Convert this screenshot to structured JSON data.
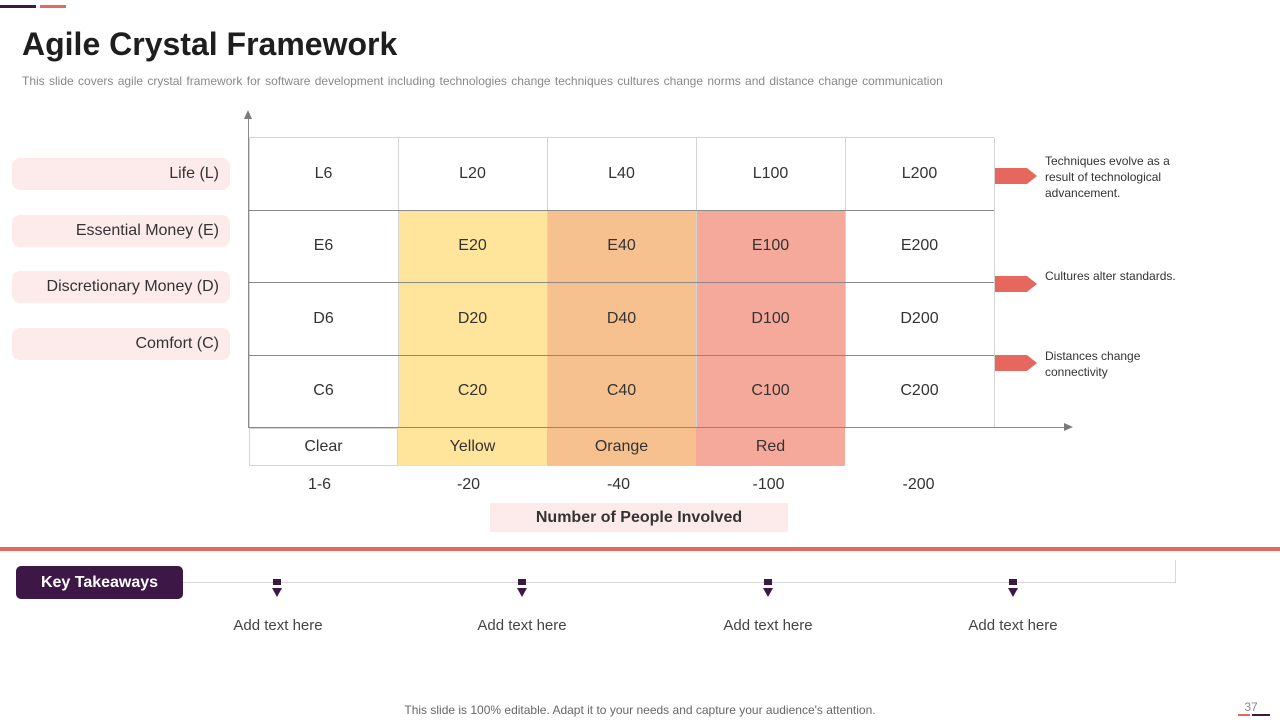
{
  "title": "Agile Crystal Framework",
  "subtitle": "This slide covers agile crystal framework for software development  including technologies change techniques cultures change norms and distance change communication",
  "row_labels": [
    "Life (L)",
    "Essential Money (E)",
    "Discretionary Money (D)",
    "Comfort (C)"
  ],
  "grid": {
    "rows": [
      [
        "L6",
        "L20",
        "L40",
        "L100",
        "L200"
      ],
      [
        "E6",
        "E20",
        "E40",
        "E100",
        "E200"
      ],
      [
        "D6",
        "D20",
        "D40",
        "D100",
        "D200"
      ],
      [
        "C6",
        "C20",
        "C40",
        "C100",
        "C200"
      ]
    ],
    "color_labels": [
      "Clear",
      "Yellow",
      "Orange",
      "Red"
    ],
    "colors": {
      "clear": "#ffffff",
      "yellow": "#ffe49c",
      "orange": "#f6c18f",
      "red": "#f5a99a"
    },
    "scale": [
      "1-6",
      "-20",
      "-40",
      "-100",
      "-200"
    ],
    "x_title": "Number of People Involved"
  },
  "side_notes": [
    "Techniques evolve  as a result of technological advancement.",
    "Cultures alter standards.",
    "Distances change connectivity"
  ],
  "key_takeaways": {
    "label": "Key Takeaways",
    "items": [
      "Add text here",
      "Add text here",
      "Add text here",
      "Add text here"
    ]
  },
  "footer": "This slide is 100% editable. Adapt it to your needs and capture your audience's attention.",
  "page_number": "37",
  "accent_colors": {
    "primary_dark": "#3d1745",
    "accent_red": "#e5675e",
    "label_bg": "#fdeaea"
  }
}
